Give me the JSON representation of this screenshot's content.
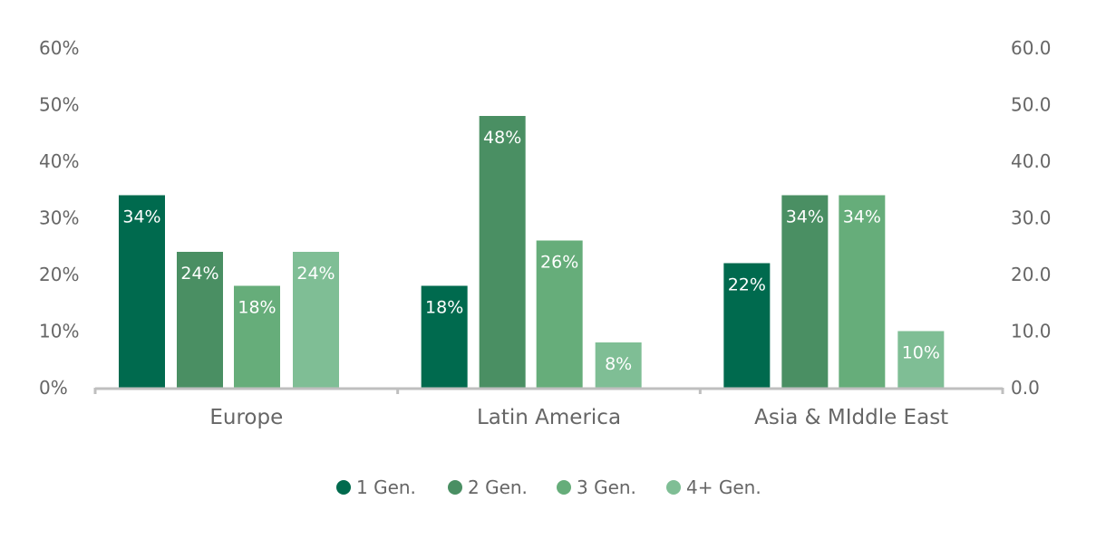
{
  "chart_data": {
    "type": "bar",
    "categories": [
      "Europe",
      "Latin America",
      "Asia & MIddle East"
    ],
    "series": [
      {
        "name": "1 Gen.",
        "values": [
          34,
          18,
          22
        ],
        "labels": [
          "34%",
          "18%",
          "22%"
        ],
        "color": "#006A4E"
      },
      {
        "name": "2 Gen.",
        "values": [
          24,
          48,
          34
        ],
        "labels": [
          "24%",
          "48%",
          "34%"
        ],
        "color": "#4A8F63"
      },
      {
        "name": "3 Gen.",
        "values": [
          18,
          26,
          34
        ],
        "labels": [
          "18%",
          "26%",
          "34%"
        ],
        "color": "#66AD7A"
      },
      {
        "name": "4+ Gen.",
        "values": [
          24,
          8,
          10
        ],
        "labels": [
          "24%",
          "8%",
          "10%"
        ],
        "color": "#7FBE95"
      }
    ],
    "ylim": [
      0,
      60
    ],
    "y_ticks": [
      0,
      10,
      20,
      30,
      40,
      50,
      60
    ],
    "y_tick_labels_left": [
      "0%",
      "10%",
      "20%",
      "30%",
      "40%",
      "50%",
      "60%"
    ],
    "y_tick_labels_right": [
      "0.0",
      "10.0",
      "20.0",
      "30.0",
      "40.0",
      "50.0",
      "60.0"
    ],
    "grid": false,
    "legend_position": "bottom-center",
    "axis_color": "#BFBFBF",
    "label_color": "#666666"
  }
}
